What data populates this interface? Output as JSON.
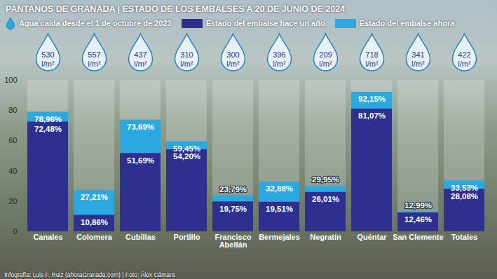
{
  "chart_data": {
    "type": "bar",
    "title": "PANTANOS DE GRANADA | ESTADO DE LOS EMBALSES A 20 DE JUNIO DE 2024",
    "caption": "Infografía: Luis F. Ruiz (ahoraGranada.com) | Foto: Álex Cámara",
    "categories": [
      "Canales",
      "Colomera",
      "Cubillas",
      "Portillo",
      "Francisco Abellán",
      "Bermejales",
      "Negratín",
      "Quéntar",
      "San Clemente",
      "Totales"
    ],
    "series": [
      {
        "name": "Estado del embalse hace un año",
        "color": "#2e2f8f",
        "values": [
          72.48,
          10.86,
          51.69,
          54.2,
          19.75,
          19.51,
          26.01,
          81.07,
          12.46,
          28.08
        ],
        "value_labels": [
          "72,48%",
          "10,86%",
          "51,69%",
          "54,20%",
          "19,75%",
          "19,51%",
          "26,01%",
          "81,07%",
          "12,46%",
          "28,08%"
        ]
      },
      {
        "name": "Estado del embalse ahora",
        "color": "#2ba8e0",
        "values": [
          78.96,
          27.21,
          73.69,
          59.45,
          23.79,
          32.88,
          29.95,
          92.15,
          12.99,
          33.53
        ],
        "value_labels": [
          "78,96%",
          "27,21%",
          "73,69%",
          "59,45%",
          "23,79%",
          "32,88%",
          "29,95%",
          "92,15%",
          "12,99%",
          "33,53%"
        ]
      }
    ],
    "rainfall": {
      "name": "Agua caída desde el 1 de octubre de 2023",
      "values": [
        530,
        557,
        437,
        310,
        300,
        396,
        209,
        718,
        341,
        422
      ],
      "value_labels": [
        "530 l/m²",
        "557 l/m²",
        "437 l/m²",
        "310 l/m²",
        "300 l/m²",
        "396 l/m²",
        "209 l/m²",
        "718 l/m²",
        "341 l/m²",
        "422 l/m²"
      ]
    },
    "ylim": [
      0,
      100
    ],
    "yticks": [
      0,
      20,
      40,
      60,
      80,
      100
    ],
    "grid": false,
    "stacked": false,
    "data_labels": true,
    "legend": "top"
  }
}
